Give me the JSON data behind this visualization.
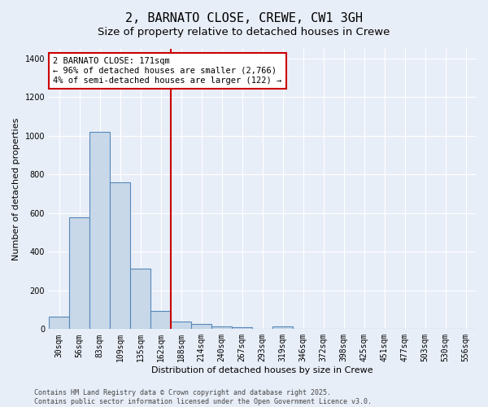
{
  "title1": "2, BARNATO CLOSE, CREWE, CW1 3GH",
  "title2": "Size of property relative to detached houses in Crewe",
  "xlabel": "Distribution of detached houses by size in Crewe",
  "ylabel": "Number of detached properties",
  "categories": [
    "30sqm",
    "56sqm",
    "83sqm",
    "109sqm",
    "135sqm",
    "162sqm",
    "188sqm",
    "214sqm",
    "240sqm",
    "267sqm",
    "293sqm",
    "319sqm",
    "346sqm",
    "372sqm",
    "398sqm",
    "425sqm",
    "451sqm",
    "477sqm",
    "503sqm",
    "530sqm",
    "556sqm"
  ],
  "values": [
    65,
    580,
    1022,
    760,
    315,
    95,
    40,
    25,
    12,
    10,
    0,
    12,
    0,
    0,
    0,
    0,
    0,
    0,
    0,
    0,
    0
  ],
  "bar_color": "#c8d8e8",
  "bar_edge_color": "#5588bb",
  "vline_color": "#cc0000",
  "annotation_title": "2 BARNATO CLOSE: 171sqm",
  "annotation_line1": "← 96% of detached houses are smaller (2,766)",
  "annotation_line2": "4% of semi-detached houses are larger (122) →",
  "annotation_box_color": "#ffffff",
  "annotation_border_color": "#cc0000",
  "ylim": [
    0,
    1450
  ],
  "yticks": [
    0,
    200,
    400,
    600,
    800,
    1000,
    1200,
    1400
  ],
  "background_color": "#e8eef8",
  "grid_color": "#ffffff",
  "footer": "Contains HM Land Registry data © Crown copyright and database right 2025.\nContains public sector information licensed under the Open Government Licence v3.0.",
  "title1_fontsize": 11,
  "title2_fontsize": 9.5,
  "xlabel_fontsize": 8,
  "ylabel_fontsize": 8,
  "tick_fontsize": 7,
  "annotation_fontsize": 7.5,
  "footer_fontsize": 6
}
